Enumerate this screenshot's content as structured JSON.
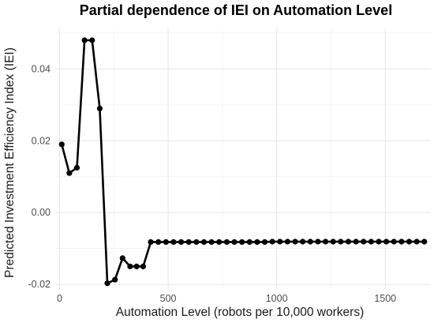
{
  "chart_data": {
    "type": "line",
    "title": "Partial dependence of IEI on Automation Level",
    "xlabel": "Automation Level (robots per 10,000 workers)",
    "ylabel": "Predicted Investment Efficiency Index (IEI)",
    "xlim": [
      -20,
      1710
    ],
    "ylim": [
      -0.0213,
      0.0513
    ],
    "x_ticks": [
      0,
      500,
      1000,
      1500
    ],
    "x_tick_labels": [
      "0",
      "500",
      "1000",
      "1500"
    ],
    "y_ticks": [
      -0.02,
      0.0,
      0.02,
      0.04
    ],
    "y_tick_labels": [
      "-0.02",
      "0.00",
      "0.02",
      "0.04"
    ],
    "grid": true,
    "legend": "none",
    "line_color": "#000000",
    "series": [
      {
        "x": [
          10,
          45,
          80,
          115,
          150,
          185,
          220,
          255,
          290,
          325,
          355,
          385,
          420,
          455,
          490,
          525,
          560,
          595,
          630,
          665,
          700,
          735,
          770,
          805,
          840,
          875,
          910,
          945,
          980,
          1015,
          1050,
          1085,
          1120,
          1155,
          1190,
          1225,
          1260,
          1295,
          1330,
          1365,
          1400,
          1435,
          1470,
          1505,
          1540,
          1575,
          1610,
          1645,
          1680
        ],
        "y": [
          0.019,
          0.011,
          0.0125,
          0.048,
          0.048,
          0.029,
          -0.0197,
          -0.0187,
          -0.0127,
          -0.015,
          -0.015,
          -0.015,
          -0.0082,
          -0.0082,
          -0.0082,
          -0.0082,
          -0.0082,
          -0.0082,
          -0.0082,
          -0.0082,
          -0.0082,
          -0.0082,
          -0.0082,
          -0.0082,
          -0.0082,
          -0.0082,
          -0.0082,
          -0.0082,
          -0.0081,
          -0.0081,
          -0.0081,
          -0.0081,
          -0.0081,
          -0.0081,
          -0.0081,
          -0.0081,
          -0.0081,
          -0.0081,
          -0.0081,
          -0.0081,
          -0.0081,
          -0.0081,
          -0.0081,
          -0.0081,
          -0.0081,
          -0.0081,
          -0.0081,
          -0.0081,
          -0.0081
        ]
      }
    ]
  }
}
